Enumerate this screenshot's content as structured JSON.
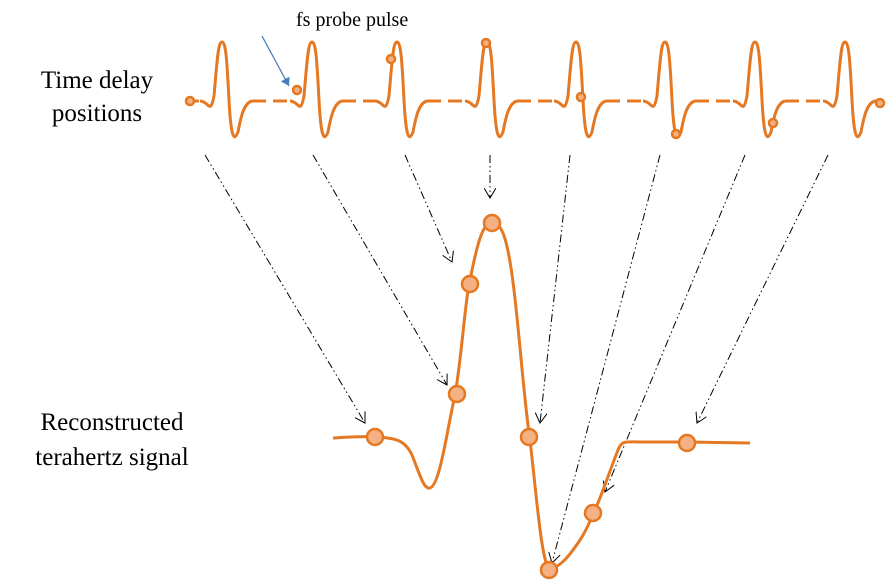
{
  "labels": {
    "probe": "fs probe pulse",
    "time_delay": [
      "Time delay",
      "positions"
    ],
    "reconstructed": [
      "Reconstructed",
      "terahertz signal"
    ]
  }
}
